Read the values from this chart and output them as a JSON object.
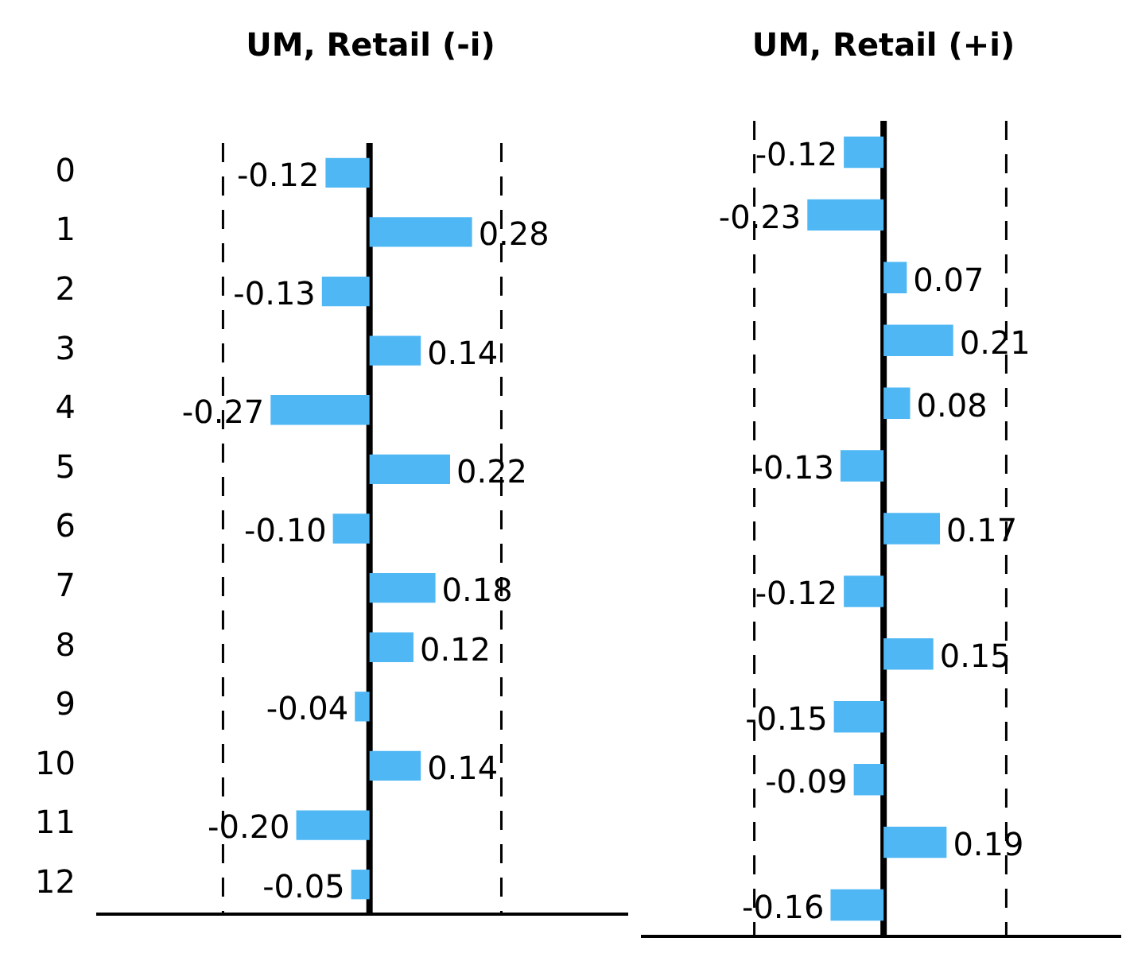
{
  "chart_data": [
    {
      "type": "bar",
      "orientation": "horizontal",
      "title": "UM, Retail (-i)",
      "categories": [
        "0",
        "1",
        "2",
        "3",
        "4",
        "5",
        "6",
        "7",
        "8",
        "9",
        "10",
        "11",
        "12"
      ],
      "series": [
        {
          "color": "#4fb7f4",
          "values": [
            -0.12,
            0.28,
            -0.13,
            0.14,
            -0.27,
            0.22,
            -0.1,
            0.18,
            0.12,
            -0.04,
            0.14,
            -0.2,
            -0.05
          ],
          "value_labels": [
            "-0.12",
            "0.28",
            "-0.13",
            "0.14",
            "-0.27",
            "0.22",
            "-0.10",
            "0.18",
            "0.12",
            "-0.04",
            "0.14",
            "-0.20",
            "-0.05"
          ]
        }
      ],
      "tick_labels": "y",
      "grid": false,
      "legend": false,
      "ref_lines": [
        {
          "axis": "x",
          "value": 0,
          "line_style": "solid",
          "color": "#000000"
        },
        {
          "axis": "x",
          "value": -0.4,
          "line_style": "dashed",
          "color": "#000000"
        },
        {
          "axis": "x",
          "value": 0.36,
          "line_style": "dashed",
          "color": "#000000"
        }
      ]
    },
    {
      "type": "bar",
      "orientation": "horizontal",
      "title": "UM, Retail (+i)",
      "categories": [
        null,
        null,
        null,
        null,
        null,
        null,
        null,
        null,
        null,
        null,
        null,
        null,
        null
      ],
      "series": [
        {
          "color": "#4fb7f4",
          "values": [
            -0.12,
            -0.23,
            0.07,
            0.21,
            0.08,
            -0.13,
            0.17,
            -0.12,
            0.15,
            -0.15,
            -0.09,
            0.19,
            -0.16
          ],
          "value_labels": [
            "-0.12",
            "-0.23",
            "0.07",
            "0.21",
            "0.08",
            "-0.13",
            "0.17",
            "-0.12",
            "0.15",
            "-0.15",
            "-0.09",
            "0.19",
            "-0.16"
          ]
        }
      ],
      "tick_labels": false,
      "grid": false,
      "legend": false,
      "ref_lines": [
        {
          "axis": "x",
          "value": 0,
          "line_style": "solid",
          "color": "#000000"
        },
        {
          "axis": "x",
          "value": -0.39,
          "line_style": "dashed",
          "color": "#000000"
        },
        {
          "axis": "x",
          "value": 0.37,
          "line_style": "dashed",
          "color": "#000000"
        }
      ]
    }
  ]
}
